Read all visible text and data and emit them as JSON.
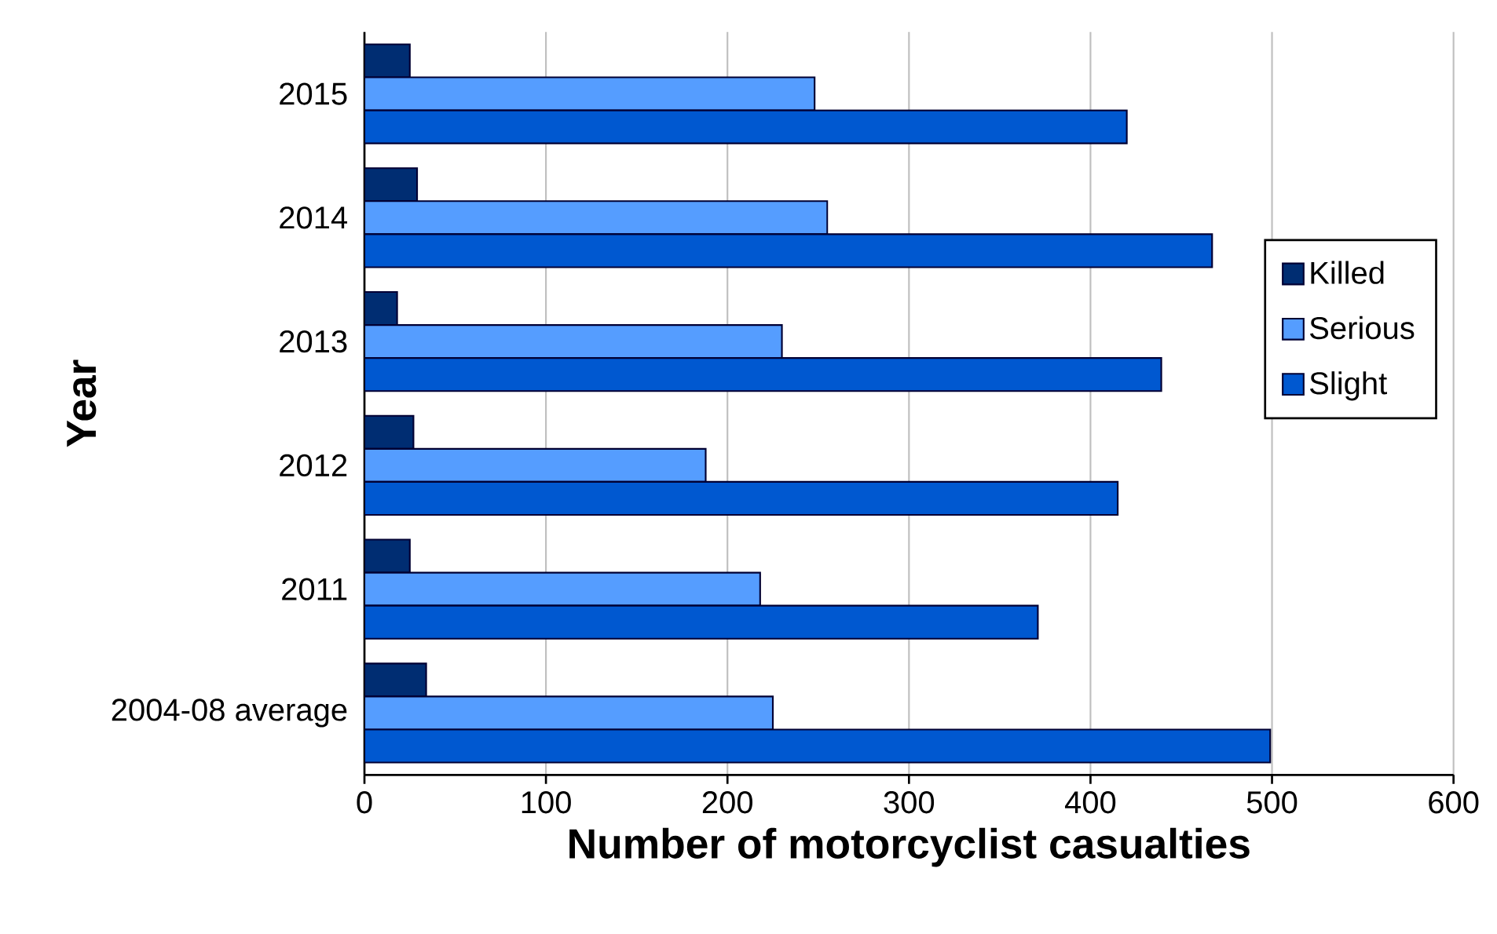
{
  "chart_data": {
    "type": "bar",
    "orientation": "horizontal",
    "xlabel": "Number of motorcyclist  casualties",
    "ylabel": "Year",
    "categories": [
      "2015",
      "2014",
      "2013",
      "2012",
      "2011",
      "2004-08 average"
    ],
    "series": [
      {
        "name": "Killed",
        "color": "#002d72",
        "values": [
          25,
          29,
          18,
          27,
          25,
          34
        ]
      },
      {
        "name": "Serious",
        "color": "#559dff",
        "values": [
          248,
          255,
          230,
          188,
          218,
          225
        ]
      },
      {
        "name": "Slight",
        "color": "#0058d0",
        "values": [
          420,
          467,
          439,
          415,
          371,
          499
        ]
      }
    ],
    "xlim": [
      0,
      600
    ],
    "xticks": [
      0,
      100,
      200,
      300,
      400,
      500,
      600
    ],
    "grid": "x",
    "legend": "right"
  }
}
